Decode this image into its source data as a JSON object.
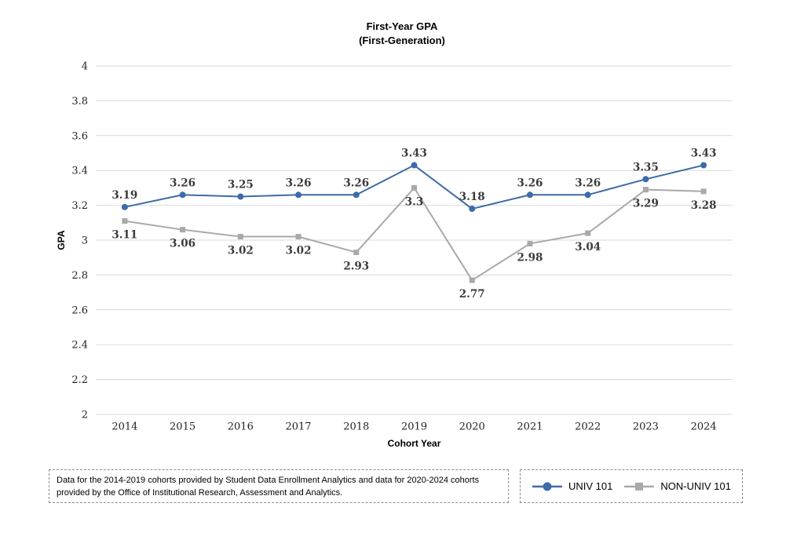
{
  "title": {
    "line1": "First-Year GPA",
    "line2": "(First-Generation)"
  },
  "chart_data": {
    "type": "line",
    "title": "First-Year GPA (First-Generation)",
    "categories": [
      "2014",
      "2015",
      "2016",
      "2017",
      "2018",
      "2019",
      "2020",
      "2021",
      "2022",
      "2023",
      "2024"
    ],
    "series": [
      {
        "name": "UNIV 101",
        "color": "#3e6ba8",
        "marker": "circle",
        "label_position": "above",
        "values": [
          3.19,
          3.26,
          3.25,
          3.26,
          3.26,
          3.43,
          3.18,
          3.26,
          3.26,
          3.35,
          3.43
        ]
      },
      {
        "name": "NON-UNIV 101",
        "color": "#a9a9a9",
        "marker": "square",
        "label_position": "below",
        "values": [
          3.11,
          3.06,
          3.02,
          3.02,
          2.93,
          3.3,
          2.77,
          2.98,
          3.04,
          3.29,
          3.28
        ]
      }
    ],
    "xlabel": "Cohort Year",
    "ylabel": "GPA",
    "ylim": [
      2,
      4
    ],
    "ytick_step": 0.2,
    "grid": true,
    "grid_color": "#d9d9d9",
    "axis_label_color": "#1f1f1f",
    "data_label_color": "#3b3b3b",
    "legend_position": "bottom-right"
  },
  "footnote": "Data for the 2014-2019 cohorts provided by Student Data Enrollment Analytics and data for 2020-2024 cohorts provided by the Office of Institutional Research, Assessment and Analytics."
}
